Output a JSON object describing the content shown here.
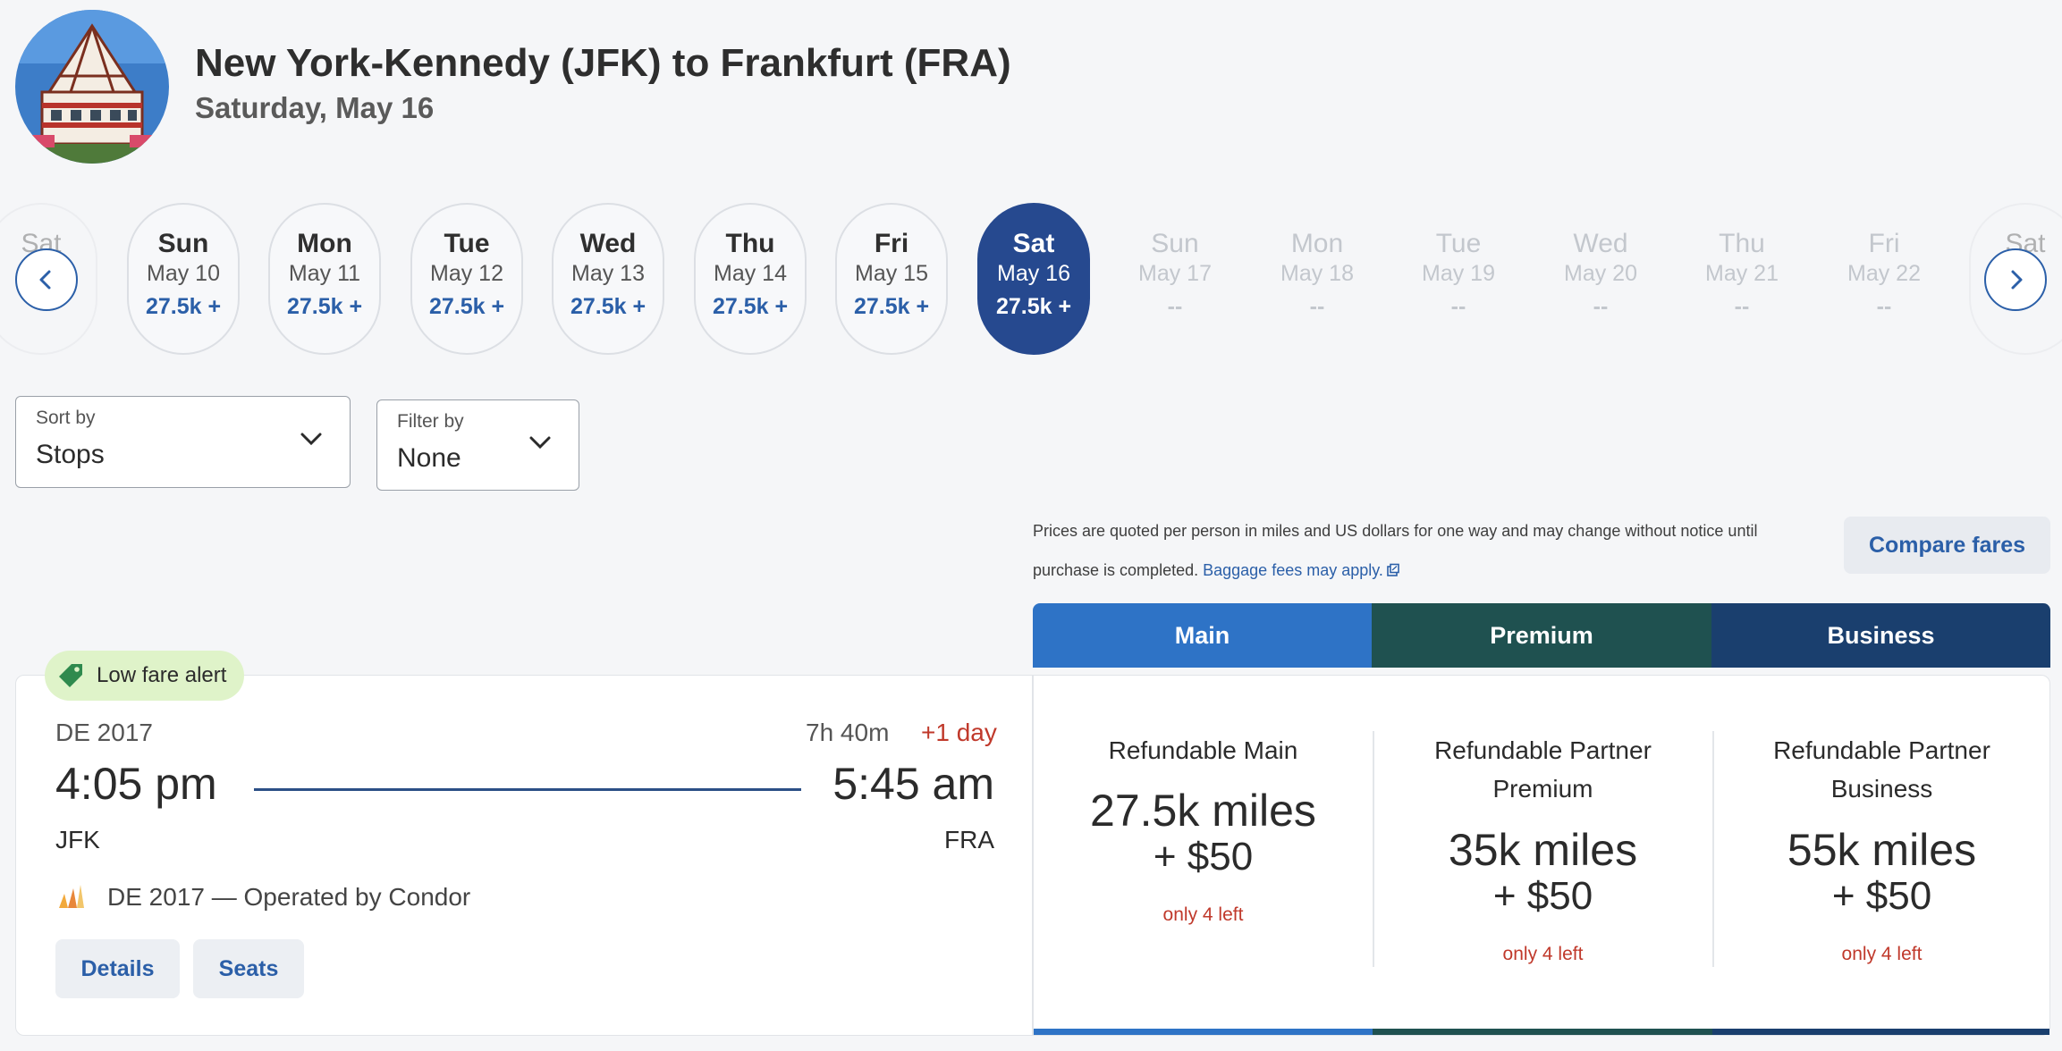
{
  "header": {
    "title": "New York-Kennedy (JFK) to Frankfurt (FRA)",
    "date": "Saturday, May 16"
  },
  "dates": [
    {
      "dow": "Sat",
      "md": "",
      "price": "",
      "state": "edge"
    },
    {
      "dow": "Sun",
      "md": "May 10",
      "price": "27.5k +",
      "state": "normal"
    },
    {
      "dow": "Mon",
      "md": "May 11",
      "price": "27.5k +",
      "state": "normal"
    },
    {
      "dow": "Tue",
      "md": "May 12",
      "price": "27.5k +",
      "state": "normal"
    },
    {
      "dow": "Wed",
      "md": "May 13",
      "price": "27.5k +",
      "state": "normal"
    },
    {
      "dow": "Thu",
      "md": "May 14",
      "price": "27.5k +",
      "state": "normal"
    },
    {
      "dow": "Fri",
      "md": "May 15",
      "price": "27.5k +",
      "state": "normal"
    },
    {
      "dow": "Sat",
      "md": "May 16",
      "price": "27.5k +",
      "state": "selected"
    },
    {
      "dow": "Sun",
      "md": "May 17",
      "price": "--",
      "state": "disabled"
    },
    {
      "dow": "Mon",
      "md": "May 18",
      "price": "--",
      "state": "disabled"
    },
    {
      "dow": "Tue",
      "md": "May 19",
      "price": "--",
      "state": "disabled"
    },
    {
      "dow": "Wed",
      "md": "May 20",
      "price": "--",
      "state": "disabled"
    },
    {
      "dow": "Thu",
      "md": "May 21",
      "price": "--",
      "state": "disabled"
    },
    {
      "dow": "Fri",
      "md": "May 22",
      "price": "--",
      "state": "disabled"
    },
    {
      "dow": "Sat",
      "md": "",
      "price": "",
      "state": "edge"
    }
  ],
  "controls": {
    "sort_label": "Sort by",
    "sort_value": "Stops",
    "filter_label": "Filter by",
    "filter_value": "None"
  },
  "disclaimer": {
    "text": "Prices are quoted per person in miles and US dollars for one way and may change without notice until purchase is completed.",
    "link": "Baggage fees may apply."
  },
  "compare_label": "Compare fares",
  "cabins": [
    {
      "label": "Main",
      "color": "#2e73c6"
    },
    {
      "label": "Premium",
      "color": "#1f5150"
    },
    {
      "label": "Business",
      "color": "#1a3f6e"
    }
  ],
  "flight": {
    "alert": "Low fare alert",
    "number": "DE 2017",
    "duration": "7h 40m",
    "day_offset": "+1 day",
    "depart_time": "4:05 pm",
    "arrive_time": "5:45 am",
    "origin": "JFK",
    "destination": "FRA",
    "operated": "DE 2017 — Operated by Condor",
    "details_label": "Details",
    "seats_label": "Seats"
  },
  "fares": [
    {
      "name_lines": [
        "Refundable Main"
      ],
      "miles": "27.5k miles",
      "usd": "+ $50",
      "left": "only 4 left"
    },
    {
      "name_lines": [
        "Refundable Partner",
        "Premium"
      ],
      "miles": "35k miles",
      "usd": "+ $50",
      "left": "only 4 left"
    },
    {
      "name_lines": [
        "Refundable Partner",
        "Business"
      ],
      "miles": "55k miles",
      "usd": "+ $50",
      "left": "only 4 left"
    }
  ],
  "colors": {
    "accent": "#2b5fa8",
    "selected_date": "#26498f",
    "alert_bg": "#dff3c9",
    "warning": "#c0392b"
  }
}
